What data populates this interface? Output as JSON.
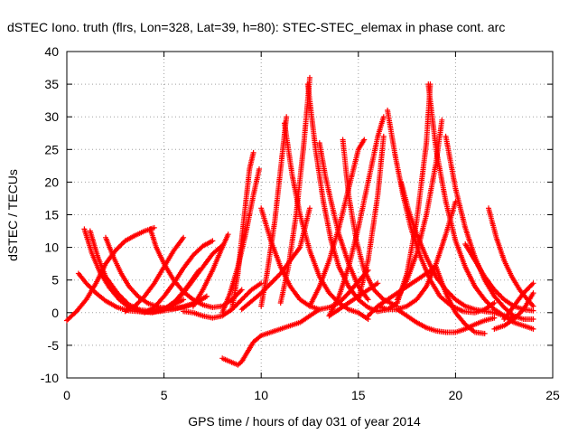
{
  "chart_data": {
    "type": "scatter",
    "title": "dSTEC Iono. truth (flrs, Lon=328, Lat=39, h=80): STEC-STEC_elemax in phase cont. arc",
    "xlabel": "GPS time / hours of day 031 of year 2014",
    "ylabel": "dSTEC  / TECUs",
    "xlim": [
      0,
      25
    ],
    "ylim": [
      -10,
      40
    ],
    "x_ticks": [
      0,
      5,
      10,
      15,
      20,
      25
    ],
    "y_ticks": [
      -10,
      -5,
      0,
      5,
      10,
      15,
      20,
      25,
      30,
      35,
      40
    ],
    "grid": true,
    "marker": "+",
    "color": "#ff0000",
    "series": [
      {
        "x": [
          0.0,
          0.5,
          1.0,
          1.5,
          2.0,
          2.5,
          3.0,
          3.5,
          4.0,
          4.5
        ],
        "y": [
          -1.2,
          0.2,
          2.0,
          4.5,
          7.5,
          9.5,
          11.0,
          11.8,
          12.5,
          13.0
        ]
      },
      {
        "x": [
          0.9,
          1.3,
          1.7,
          2.2,
          2.7,
          3.2,
          3.8,
          4.4,
          5.0,
          5.6,
          6.2,
          6.8
        ],
        "y": [
          12.8,
          9.0,
          6.2,
          3.8,
          2.0,
          0.8,
          0.2,
          0.0,
          0.5,
          1.8,
          4.0,
          6.5
        ]
      },
      {
        "x": [
          1.2,
          1.6,
          2.0,
          2.6,
          3.2,
          3.8,
          4.5,
          5.2,
          6.0
        ],
        "y": [
          12.5,
          8.5,
          5.5,
          3.0,
          1.2,
          0.4,
          0.2,
          0.8,
          2.0
        ]
      },
      {
        "x": [
          0.6,
          1.0,
          1.5,
          2.0,
          2.6,
          3.2,
          4.0,
          4.8,
          5.6,
          6.4,
          7.2
        ],
        "y": [
          6.0,
          4.5,
          3.0,
          1.8,
          0.8,
          0.3,
          0.1,
          0.2,
          0.6,
          1.3,
          2.5
        ]
      },
      {
        "x": [
          2.0,
          2.4,
          2.8,
          3.2,
          3.7,
          4.2,
          4.8,
          5.4,
          6.0,
          6.6,
          7.2
        ],
        "y": [
          11.5,
          8.5,
          6.0,
          4.0,
          2.4,
          1.4,
          0.8,
          0.6,
          0.8,
          1.4,
          2.5
        ]
      },
      {
        "x": [
          4.3,
          4.6,
          5.0,
          5.5,
          6.0,
          6.5,
          7.0,
          7.5,
          8.0,
          8.5,
          9.0
        ],
        "y": [
          12.8,
          10.0,
          7.5,
          5.0,
          3.2,
          2.0,
          1.2,
          0.8,
          1.0,
          2.0,
          3.5
        ]
      },
      {
        "x": [
          3.0,
          3.5,
          4.0,
          4.5,
          5.0,
          5.5,
          6.0
        ],
        "y": [
          0.2,
          1.0,
          2.5,
          4.5,
          7.0,
          9.5,
          11.5
        ]
      },
      {
        "x": [
          4.0,
          4.5,
          5.0,
          5.5,
          6.0,
          6.5,
          7.0,
          7.5
        ],
        "y": [
          0.0,
          0.8,
          2.5,
          4.5,
          6.8,
          8.8,
          10.2,
          11.0
        ]
      },
      {
        "x": [
          5.0,
          5.5,
          6.0,
          6.5,
          7.0,
          7.5,
          8.0
        ],
        "y": [
          0.5,
          1.5,
          3.0,
          5.0,
          7.0,
          9.0,
          10.3
        ]
      },
      {
        "x": [
          6.0,
          6.5,
          7.0,
          7.5,
          8.0,
          8.5,
          9.0,
          9.5,
          10.0
        ],
        "y": [
          0.2,
          0.0,
          -0.5,
          -0.8,
          -0.5,
          0.5,
          2.0,
          3.5,
          4.5
        ]
      },
      {
        "x": [
          6.5,
          7.0,
          7.5,
          8.0,
          8.3
        ],
        "y": [
          1.0,
          3.5,
          6.5,
          10.0,
          12.0
        ]
      },
      {
        "x": [
          8.0,
          8.4,
          8.8,
          9.0,
          9.3,
          9.6,
          10.0,
          10.5,
          11.0,
          11.5,
          12.0,
          12.5,
          13.0
        ],
        "y": [
          -7.0,
          -7.5,
          -8.0,
          -7.5,
          -6.0,
          -4.5,
          -3.5,
          -3.0,
          -2.5,
          -2.0,
          -1.5,
          -0.5,
          0.5
        ]
      },
      {
        "x": [
          8.5,
          8.8,
          9.1,
          9.4,
          9.6
        ],
        "y": [
          0.5,
          6.0,
          14.0,
          22.0,
          24.5
        ]
      },
      {
        "x": [
          8.0,
          8.4,
          8.8,
          9.2,
          9.6,
          9.9
        ],
        "y": [
          0.0,
          3.0,
          7.0,
          12.0,
          18.0,
          22.0
        ]
      },
      {
        "x": [
          10.0,
          10.3,
          10.7,
          11.0,
          11.3
        ],
        "y": [
          1.0,
          6.0,
          14.0,
          22.0,
          30.0
        ]
      },
      {
        "x": [
          11.0,
          11.4,
          11.8,
          12.2,
          12.5
        ],
        "y": [
          1.5,
          7.0,
          15.0,
          26.0,
          36.0
        ]
      },
      {
        "x": [
          9.0,
          10.0,
          11.0,
          12.0,
          12.5
        ],
        "y": [
          0.5,
          3.0,
          6.0,
          10.0,
          16.0
        ]
      },
      {
        "x": [
          12.5,
          13.0,
          13.5,
          14.0,
          14.5,
          15.0,
          15.3
        ],
        "y": [
          1.0,
          4.0,
          8.0,
          13.0,
          19.0,
          25.0,
          26.5
        ]
      },
      {
        "x": [
          13.5,
          14.0,
          14.5,
          15.0,
          15.5,
          16.0,
          16.3
        ],
        "y": [
          -0.5,
          2.5,
          7.0,
          13.0,
          20.0,
          27.0,
          30.0
        ]
      },
      {
        "x": [
          15.0,
          15.5,
          16.0,
          16.3
        ],
        "y": [
          2.0,
          8.0,
          18.0,
          27.0
        ]
      },
      {
        "x": [
          10.0,
          10.5,
          11.0,
          11.5,
          12.0,
          12.5,
          13.0,
          13.5,
          14.0,
          14.5,
          15.0,
          15.5
        ],
        "y": [
          16.0,
          11.0,
          7.0,
          4.0,
          2.0,
          1.0,
          0.5,
          0.8,
          1.5,
          3.0,
          4.8,
          6.5
        ]
      },
      {
        "x": [
          11.2,
          11.6,
          12.0,
          12.5,
          13.0,
          13.5,
          14.0,
          14.5,
          15.0,
          15.5
        ],
        "y": [
          29.0,
          21.0,
          15.0,
          9.5,
          5.5,
          3.0,
          1.5,
          0.5,
          0.0,
          -1.0
        ]
      },
      {
        "x": [
          12.4,
          12.8,
          13.2,
          13.6,
          14.0,
          14.5,
          15.0,
          15.5,
          16.0,
          16.5,
          17.0
        ],
        "y": [
          35.0,
          25.0,
          17.0,
          11.0,
          7.0,
          4.0,
          2.0,
          0.8,
          0.2,
          0.5,
          1.5
        ]
      },
      {
        "x": [
          13.0,
          13.3,
          13.6,
          14.0,
          14.5,
          15.0,
          15.5
        ],
        "y": [
          26.0,
          21.0,
          17.0,
          12.0,
          7.5,
          4.0,
          2.0
        ]
      },
      {
        "x": [
          14.2,
          14.5,
          14.9,
          15.3,
          15.8,
          16.3,
          17.0
        ],
        "y": [
          26.5,
          18.0,
          11.0,
          6.5,
          3.5,
          2.0,
          1.0
        ]
      },
      {
        "x": [
          16.5,
          16.9,
          17.3,
          17.7,
          18.2,
          18.7,
          19.2,
          19.8,
          20.4,
          21.0,
          21.5,
          22.0
        ],
        "y": [
          31.0,
          24.0,
          18.0,
          13.0,
          8.5,
          5.0,
          2.5,
          1.0,
          0.2,
          0.0,
          0.5,
          1.5
        ]
      },
      {
        "x": [
          17.2,
          17.6,
          18.0,
          18.5,
          19.0,
          19.5,
          20.0,
          20.5,
          21.0,
          21.5,
          22.0,
          22.5,
          23.0
        ],
        "y": [
          20.0,
          15.5,
          12.0,
          8.5,
          5.5,
          3.5,
          2.0,
          1.0,
          0.5,
          0.2,
          0.0,
          -0.5,
          -0.8
        ]
      },
      {
        "x": [
          16.0,
          16.5,
          17.0,
          17.5,
          18.0,
          18.5,
          19.0,
          19.5,
          20.0
        ],
        "y": [
          1.0,
          0.5,
          0.5,
          1.0,
          2.0,
          4.0,
          7.5,
          12.0,
          17.0
        ]
      },
      {
        "x": [
          17.0,
          17.5,
          18.0,
          18.5,
          18.7
        ],
        "y": [
          1.5,
          6.0,
          14.0,
          26.0,
          35.0
        ]
      },
      {
        "x": [
          18.6,
          19.0,
          19.5,
          20.0,
          20.5,
          21.0,
          21.5,
          22.0,
          22.5,
          23.0,
          23.5,
          24.0
        ],
        "y": [
          35.0,
          25.0,
          17.0,
          11.0,
          7.0,
          4.0,
          2.0,
          0.5,
          -0.5,
          -1.5,
          -2.0,
          -2.5
        ]
      },
      {
        "x": [
          19.5,
          20.0,
          20.5,
          21.0,
          21.5,
          22.0,
          22.5,
          23.0,
          23.5,
          24.0
        ],
        "y": [
          27.0,
          19.0,
          13.0,
          8.5,
          5.0,
          2.5,
          0.8,
          -0.5,
          -1.0,
          -1.0
        ]
      },
      {
        "x": [
          20.5,
          21.0,
          21.5,
          22.0,
          22.5,
          23.0,
          23.5,
          24.0
        ],
        "y": [
          10.5,
          8.0,
          5.5,
          3.5,
          2.0,
          1.0,
          0.5,
          0.3
        ]
      },
      {
        "x": [
          21.7,
          22.1,
          22.5,
          22.9,
          23.3,
          23.7,
          24.0
        ],
        "y": [
          16.0,
          11.5,
          8.0,
          5.5,
          3.5,
          2.0,
          1.0
        ]
      },
      {
        "x": [
          22.0,
          22.5,
          23.0,
          23.5,
          24.0
        ],
        "y": [
          -2.5,
          -2.0,
          -1.0,
          0.5,
          3.0
        ]
      },
      {
        "x": [
          22.5,
          23.0,
          23.5,
          24.0
        ],
        "y": [
          -1.0,
          1.0,
          3.0,
          4.5
        ]
      },
      {
        "x": [
          17.0,
          17.5,
          18.0,
          18.5,
          19.0,
          19.5,
          20.0,
          20.5,
          21.0,
          21.5,
          22.0
        ],
        "y": [
          0.5,
          -0.5,
          -1.5,
          -2.3,
          -2.8,
          -3.0,
          -3.0,
          -2.5,
          -1.8,
          -1.2,
          -0.8
        ]
      },
      {
        "x": [
          15.5,
          16.0,
          16.5,
          17.0,
          17.5,
          18.0,
          18.5,
          19.0
        ],
        "y": [
          -0.5,
          1.0,
          2.0,
          3.0,
          4.0,
          5.0,
          6.0,
          7.0
        ]
      },
      {
        "x": [
          19.0,
          19.5,
          20.0,
          20.5,
          21.0,
          21.5
        ],
        "y": [
          7.0,
          3.0,
          0.0,
          -1.8,
          -3.0,
          -3.2
        ]
      },
      {
        "x": [
          13.5,
          14.0,
          14.5,
          15.0,
          15.5,
          16.0
        ],
        "y": [
          -0.5,
          0.5,
          1.5,
          2.5,
          3.5,
          4.5
        ]
      },
      {
        "x": [
          17.0,
          17.5,
          18.0,
          18.5,
          19.0,
          19.3
        ],
        "y": [
          2.0,
          5.0,
          9.0,
          15.0,
          23.0,
          29.5
        ]
      }
    ]
  }
}
